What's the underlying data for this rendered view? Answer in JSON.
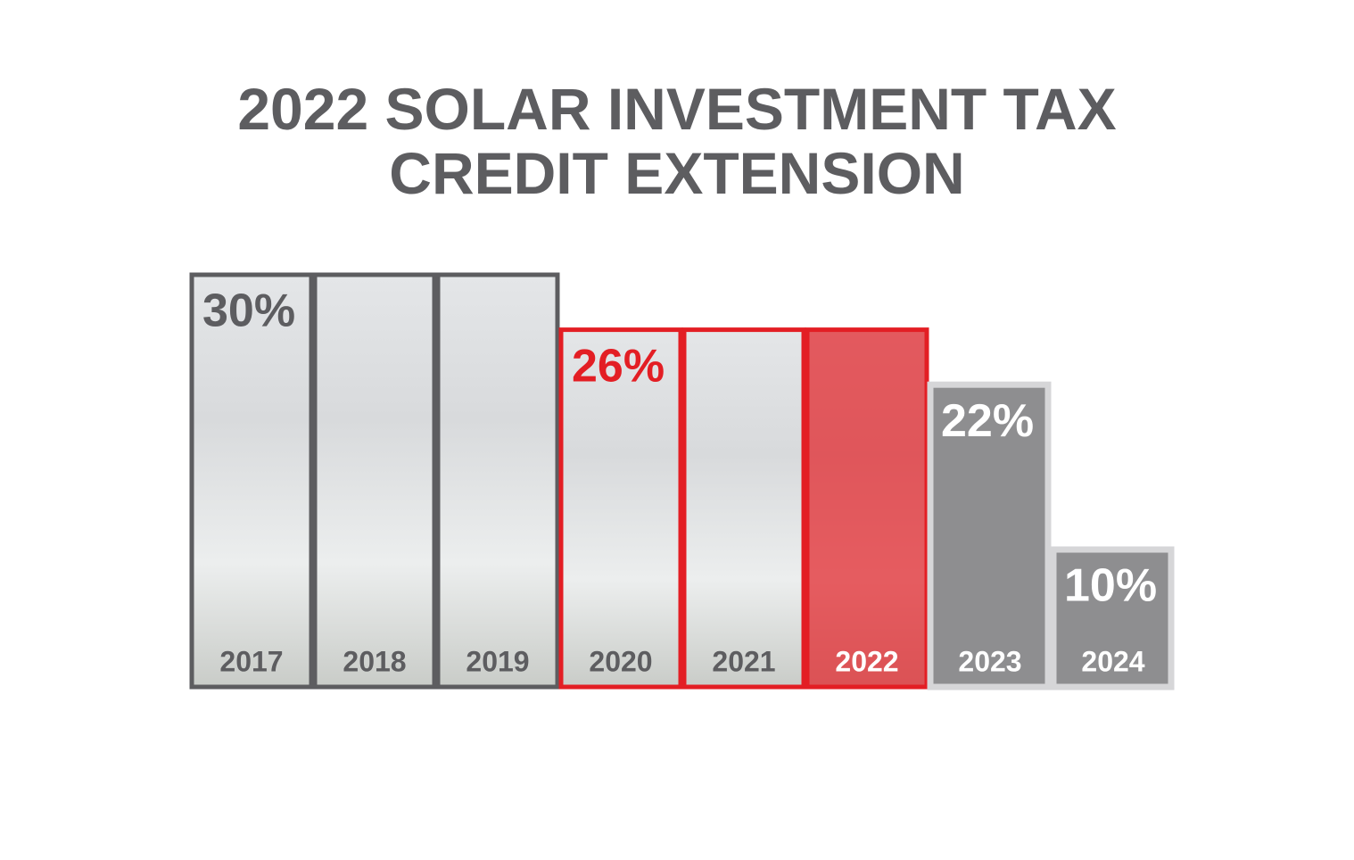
{
  "chart_data": {
    "type": "bar",
    "title": "2022 SOLAR INVESTMENT TAX CREDIT EXTENSION",
    "categories": [
      "2017",
      "2018",
      "2019",
      "2020",
      "2021",
      "2022",
      "2023",
      "2024"
    ],
    "values": [
      30,
      30,
      30,
      26,
      26,
      26,
      22,
      10
    ],
    "value_labels": [
      "30%",
      null,
      null,
      "26%",
      null,
      null,
      "22%",
      "10%"
    ],
    "colors": [
      "#5d5d60",
      "#5d5d60",
      "#5d5d60",
      "#e31e24",
      "#e31e24",
      "#e31e24",
      "#8e8e90",
      "#8e8e90"
    ],
    "highlight": "2022"
  }
}
